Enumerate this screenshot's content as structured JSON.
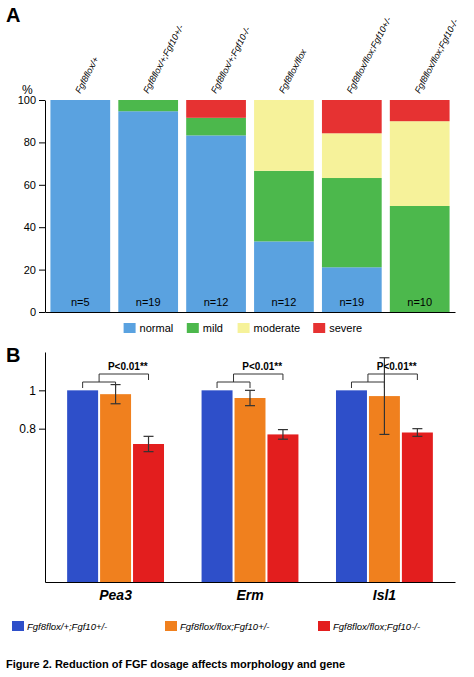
{
  "chart_data": [
    {
      "type": "bar",
      "stacked": true,
      "panel_label": "A",
      "y_label": "%",
      "categories": [
        "Fgf8flox/+",
        "Fgf8flox/+;Fgf10+/-",
        "Fgf8flox/+;Fgf10-/-",
        "Fgf8flox/flox",
        "Fgf8flox/flox;Fgf10+/-",
        "Fgf8flox/flox;Fgf10-/-"
      ],
      "n_labels": [
        "n=5",
        "n=19",
        "n=12",
        "n=12",
        "n=19",
        "n=10"
      ],
      "series": [
        {
          "name": "normal",
          "color": "#5aa2e0",
          "values": [
            100,
            94.7,
            83.3,
            33.3,
            21.1,
            0
          ]
        },
        {
          "name": "mild",
          "color": "#4cb84c",
          "values": [
            0,
            5.3,
            8.3,
            33.3,
            42.1,
            50
          ]
        },
        {
          "name": "moderate",
          "color": "#f6f29a",
          "values": [
            0,
            0,
            0,
            33.4,
            21.1,
            40
          ]
        },
        {
          "name": "severe",
          "color": "#e63232",
          "values": [
            0,
            0,
            8.4,
            0,
            15.7,
            10
          ]
        }
      ],
      "ylim": [
        0,
        100
      ],
      "yticks": [
        0,
        20,
        40,
        60,
        80,
        100
      ],
      "grid": false,
      "legend": "bottom"
    },
    {
      "type": "bar",
      "panel_label": "B",
      "categories": [
        "Pea3",
        "Erm",
        "Isl1"
      ],
      "series": [
        {
          "name": "Fgf8flox/+;Fgf10+/-",
          "color": "#2e4fc9",
          "values": [
            1,
            1,
            1
          ],
          "errors": [
            null,
            null,
            null
          ]
        },
        {
          "name": "Fgf8flox/flox;Fgf10+/-",
          "color": "#f0801e",
          "values": [
            0.98,
            0.96,
            0.97
          ],
          "errors": [
            0.05,
            0.04,
            0.2
          ]
        },
        {
          "name": "Fgf8flox/flox;Fgf10-/-",
          "color": "#e31e1e",
          "values": [
            0.72,
            0.77,
            0.78
          ],
          "errors": [
            0.04,
            0.025,
            0.02
          ]
        }
      ],
      "annotations": [
        {
          "text": "P<0.01**",
          "category": "Pea3"
        },
        {
          "text": "P<0.01**",
          "category": "Erm"
        },
        {
          "text": "P<0.01**",
          "category": "Isl1"
        }
      ],
      "ylim": [
        0,
        1.2
      ],
      "yticks": [
        0.8,
        1
      ],
      "grid": false,
      "legend": "bottom"
    }
  ],
  "caption": "Figure 2. Reduction of FGF dosage affects morphology and gene"
}
